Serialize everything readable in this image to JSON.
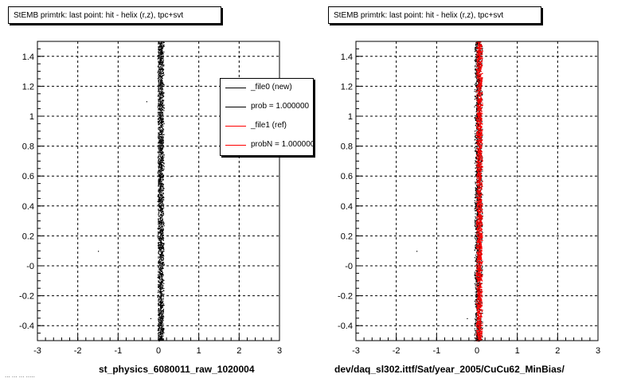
{
  "chart_data": [
    {
      "type": "scatter",
      "title": "StEMB primtrk: last point: hit - helix (r,z), tpc+svt",
      "xlabel": "st_physics_6080011_raw_1020004",
      "ylabel": "",
      "xlim": [
        -3,
        3
      ],
      "ylim": [
        -0.5,
        1.5
      ],
      "xticks": [
        "-3",
        "-2",
        "-1",
        "0",
        "1",
        "2",
        "3"
      ],
      "yticks": [
        "-0.4",
        "-0.2",
        "-0",
        "0.2",
        "0.4",
        "0.6",
        "0.8",
        "1",
        "1.2",
        "1.4"
      ],
      "grid": true,
      "legend_position": "top-right",
      "legend": [
        {
          "label": "_file0 (new)",
          "color": "#000000"
        },
        {
          "label": "prob = 1.000000",
          "color": "#000000"
        },
        {
          "label": "_file1 (ref)",
          "color": "#ff0000"
        },
        {
          "label": "probN = 1.000000",
          "color": "#ff0000"
        }
      ],
      "series": [
        {
          "color": "#000000",
          "x_center": 0.05,
          "x_spread": 0.08,
          "y_range": [
            -0.5,
            1.5
          ],
          "outliers": [
            [
              -1.5,
              0.1
            ],
            [
              -0.3,
              1.1
            ],
            [
              -0.2,
              -0.35
            ],
            [
              0.3,
              0.6
            ]
          ]
        }
      ]
    },
    {
      "type": "scatter",
      "title": "StEMB primtrk: last point: hit - helix (r,z), tpc+svt",
      "xlabel": "dev/daq_sl302.ittf/Sat/year_2005/CuCu62_MinBias/",
      "ylabel": "",
      "xlim": [
        -3,
        3
      ],
      "ylim": [
        -0.5,
        1.5
      ],
      "xticks": [
        "-3",
        "-2",
        "-1",
        "0",
        "1",
        "2",
        "3"
      ],
      "yticks": [
        "-0.4",
        "-0.2",
        "-0",
        "0.2",
        "0.4",
        "0.6",
        "0.8",
        "1",
        "1.2",
        "1.4"
      ],
      "grid": true,
      "series": [
        {
          "color": "#000000",
          "x_center": 0.03,
          "x_spread": 0.1,
          "y_range": [
            -0.5,
            1.5
          ],
          "outliers": [
            [
              -1.5,
              0.1
            ],
            [
              -0.25,
              -0.35
            ]
          ]
        },
        {
          "color": "#ff0000",
          "x_center": 0.05,
          "x_spread": 0.08,
          "y_range": [
            -0.5,
            1.5
          ]
        }
      ]
    }
  ],
  "footer": "... ... ... ....."
}
